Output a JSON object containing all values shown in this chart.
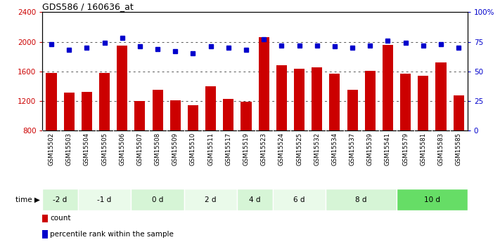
{
  "title": "GDS586 / 160636_at",
  "samples": [
    "GSM15502",
    "GSM15503",
    "GSM15504",
    "GSM15505",
    "GSM15506",
    "GSM15507",
    "GSM15508",
    "GSM15509",
    "GSM15510",
    "GSM15511",
    "GSM15517",
    "GSM15519",
    "GSM15523",
    "GSM15524",
    "GSM15525",
    "GSM15532",
    "GSM15534",
    "GSM15537",
    "GSM15539",
    "GSM15541",
    "GSM15579",
    "GSM15581",
    "GSM15583",
    "GSM15585"
  ],
  "counts": [
    1580,
    1310,
    1320,
    1580,
    1950,
    1200,
    1350,
    1210,
    1140,
    1400,
    1230,
    1190,
    2060,
    1680,
    1640,
    1650,
    1570,
    1350,
    1610,
    1960,
    1570,
    1540,
    1720,
    1280
  ],
  "percentiles": [
    73,
    68,
    70,
    74,
    78,
    71,
    69,
    67,
    65,
    71,
    70,
    68,
    77,
    72,
    72,
    72,
    71,
    70,
    72,
    76,
    74,
    72,
    73,
    70
  ],
  "groups": [
    {
      "label": "-2 d",
      "start": 0,
      "end": 2,
      "color": "#d6f5d6"
    },
    {
      "label": "-1 d",
      "start": 2,
      "end": 5,
      "color": "#eafaea"
    },
    {
      "label": "0 d",
      "start": 5,
      "end": 8,
      "color": "#d6f5d6"
    },
    {
      "label": "2 d",
      "start": 8,
      "end": 11,
      "color": "#eafaea"
    },
    {
      "label": "4 d",
      "start": 11,
      "end": 13,
      "color": "#d6f5d6"
    },
    {
      "label": "6 d",
      "start": 13,
      "end": 16,
      "color": "#eafaea"
    },
    {
      "label": "8 d",
      "start": 16,
      "end": 20,
      "color": "#d6f5d6"
    },
    {
      "label": "10 d",
      "start": 20,
      "end": 24,
      "color": "#66dd66"
    }
  ],
  "ylim_left": [
    800,
    2400
  ],
  "ylim_right": [
    0,
    100
  ],
  "yticks_left": [
    800,
    1200,
    1600,
    2000,
    2400
  ],
  "yticks_right": [
    0,
    25,
    50,
    75,
    100
  ],
  "bar_color": "#cc0000",
  "dot_color": "#0000cc",
  "grid_color": "#555555",
  "bg_color": "#ffffff",
  "plot_bg_color": "#ffffff",
  "xtick_bg_color": "#cccccc"
}
